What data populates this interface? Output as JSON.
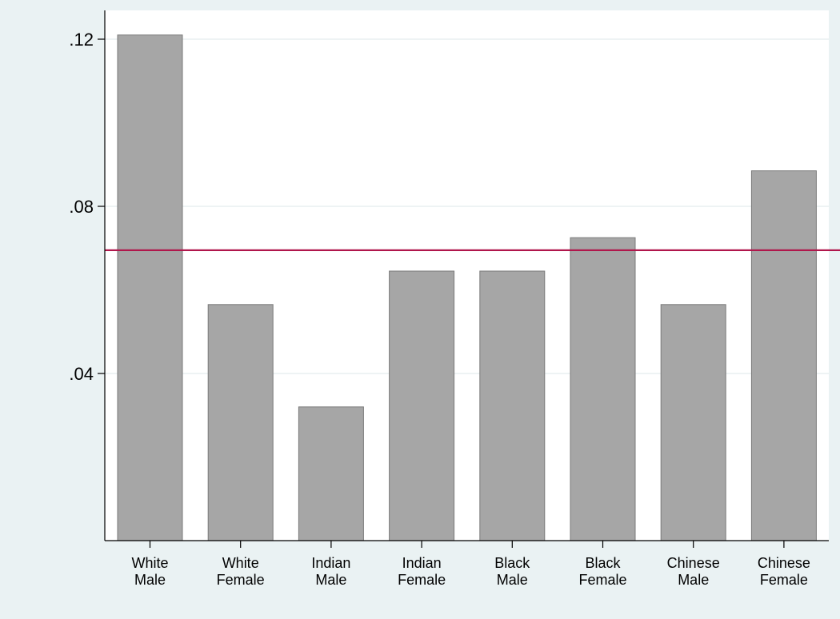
{
  "chart_data": {
    "type": "bar",
    "title": "",
    "xlabel": "",
    "ylabel": "",
    "categories": [
      [
        "White",
        "Male"
      ],
      [
        "White",
        "Female"
      ],
      [
        "Indian",
        "Male"
      ],
      [
        "Indian",
        "Female"
      ],
      [
        "Black",
        "Male"
      ],
      [
        "Black",
        "Female"
      ],
      [
        "Chinese",
        "Male"
      ],
      [
        "Chinese",
        "Female"
      ]
    ],
    "values": [
      0.121,
      0.0565,
      0.032,
      0.0645,
      0.0645,
      0.0725,
      0.0565,
      0.0885
    ],
    "ylim": [
      0,
      0.121
    ],
    "yticks": [
      0.04,
      0.08,
      0.12
    ],
    "ytick_labels": [
      ".04",
      ".08",
      ".12"
    ],
    "reference_line": 0.0695,
    "grid": true,
    "colors": {
      "plot_background": "#ffffff",
      "outer_background": "#eaf2f3",
      "bar_fill": "#a6a6a6",
      "bar_stroke": "#7a7a7a",
      "gridline": "#e3ecee",
      "reference_line": "#b0164b",
      "axis": "#000000"
    }
  }
}
